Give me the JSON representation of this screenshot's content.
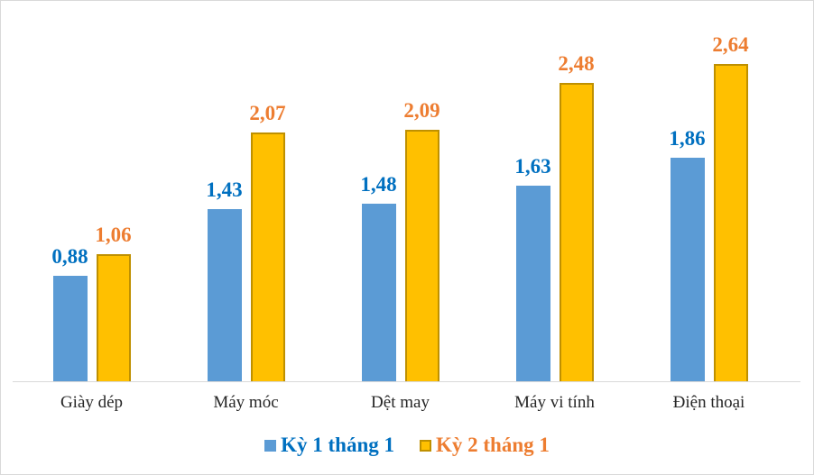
{
  "chart_data": {
    "type": "bar",
    "title": "",
    "xlabel": "",
    "ylabel": "",
    "categories": [
      "Giày dép",
      "Máy móc",
      "Dệt may",
      "Máy vi tính",
      "Điện thoại"
    ],
    "series": [
      {
        "name": "Kỳ 1 tháng 1",
        "color": "#5b9bd5",
        "label_color": "#0070c0",
        "values": [
          0.88,
          1.43,
          1.48,
          1.63,
          1.86
        ],
        "labels": [
          "0,88",
          "1,43",
          "1,48",
          "1,63",
          "1,86"
        ]
      },
      {
        "name": "Kỳ 2 tháng 1",
        "color": "#ffc000",
        "label_color": "#ed7d31",
        "values": [
          1.06,
          2.07,
          2.09,
          2.48,
          2.64
        ],
        "labels": [
          "1,06",
          "2,07",
          "2,09",
          "2,48",
          "2,64"
        ]
      }
    ],
    "ylim": [
      0,
      3.0
    ],
    "grid": false,
    "legend_position": "bottom",
    "axis_visible": false
  },
  "legend": {
    "items": [
      {
        "label": "Kỳ 1 tháng 1"
      },
      {
        "label": "Kỳ 2 tháng 1"
      }
    ]
  }
}
